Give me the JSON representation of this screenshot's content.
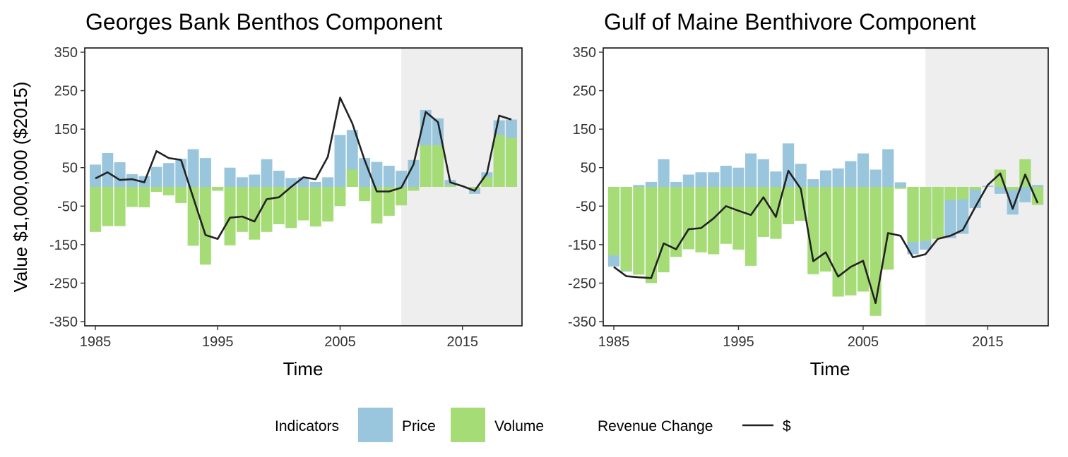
{
  "legend": {
    "fill_title": "Indicators",
    "fill_items": [
      {
        "label": "Price",
        "color": "#9ac6dd"
      },
      {
        "label": "Volume",
        "color": "#a6dc76"
      }
    ],
    "line_title": "Revenue Change",
    "line_label": "$",
    "line_color": "#222222"
  },
  "shade_color": "#eeeeee",
  "chart_data": [
    {
      "type": "bar",
      "title": "Georges Bank Benthos Component",
      "xlabel": "Time",
      "ylabel": "Value $1,000,000 ($2015)",
      "ylim": [
        -350,
        350
      ],
      "xlim": [
        1985,
        2019
      ],
      "yticks": [
        "350",
        "250",
        "150",
        "50",
        "-50",
        "-150",
        "-250",
        "-350"
      ],
      "ytick_values": [
        350,
        250,
        150,
        50,
        -50,
        -150,
        -250,
        -350
      ],
      "xticks": [
        "1985",
        "1995",
        "2005",
        "2015"
      ],
      "xtick_values": [
        1985,
        1995,
        2005,
        2015
      ],
      "shaded_from": 2010,
      "years": [
        1985,
        1986,
        1987,
        1988,
        1989,
        1990,
        1991,
        1992,
        1993,
        1994,
        1995,
        1996,
        1997,
        1998,
        1999,
        2000,
        2001,
        2002,
        2003,
        2004,
        2005,
        2006,
        2007,
        2008,
        2009,
        2010,
        2011,
        2012,
        2013,
        2014,
        2015,
        2016,
        2017,
        2018,
        2019
      ],
      "series": [
        {
          "name": "Price",
          "values": [
            58,
            88,
            64,
            33,
            28,
            52,
            62,
            73,
            98,
            75,
            -10,
            50,
            25,
            32,
            72,
            42,
            23,
            25,
            13,
            25,
            135,
            148,
            75,
            65,
            55,
            42,
            70,
            200,
            178,
            18,
            0,
            -18,
            38,
            173,
            175
          ]
        },
        {
          "name": "Volume",
          "values": [
            -117,
            -102,
            -102,
            -52,
            -53,
            -13,
            -22,
            -42,
            -153,
            -202,
            -10,
            -152,
            -117,
            -137,
            -117,
            -97,
            -107,
            -87,
            -103,
            -90,
            -50,
            45,
            -37,
            -95,
            -75,
            -48,
            -10,
            108,
            108,
            5,
            0,
            -7,
            25,
            135,
            127
          ]
        },
        {
          "name": "$",
          "values": [
            22,
            38,
            18,
            20,
            12,
            93,
            75,
            70,
            -28,
            -125,
            -135,
            -80,
            -77,
            -90,
            -32,
            -27,
            0,
            25,
            20,
            78,
            232,
            165,
            70,
            -12,
            -12,
            -2,
            58,
            195,
            168,
            12,
            2,
            -10,
            35,
            185,
            175
          ]
        }
      ]
    },
    {
      "type": "bar",
      "title": "Gulf of Maine Benthivore Component",
      "xlabel": "Time",
      "ylabel": "",
      "ylim": [
        -350,
        350
      ],
      "xlim": [
        1985,
        2019
      ],
      "yticks": [
        "350",
        "250",
        "150",
        "50",
        "-50",
        "-150",
        "-250",
        "-350"
      ],
      "ytick_values": [
        350,
        250,
        150,
        50,
        -50,
        -150,
        -250,
        -350
      ],
      "xticks": [
        "1985",
        "1995",
        "2005",
        "2015"
      ],
      "xtick_values": [
        1985,
        1995,
        2005,
        2015
      ],
      "shaded_from": 2010,
      "years": [
        1985,
        1986,
        1987,
        1988,
        1989,
        1990,
        1991,
        1992,
        1993,
        1994,
        1995,
        1996,
        1997,
        1998,
        1999,
        2000,
        2001,
        2002,
        2003,
        2004,
        2005,
        2006,
        2007,
        2008,
        2009,
        2010,
        2011,
        2012,
        2013,
        2014,
        2015,
        2016,
        2017,
        2018,
        2019
      ],
      "series": [
        {
          "name": "Price",
          "values": [
            -207,
            -220,
            5,
            13,
            72,
            13,
            32,
            38,
            38,
            55,
            50,
            87,
            72,
            40,
            113,
            60,
            20,
            43,
            48,
            67,
            87,
            45,
            98,
            12,
            -175,
            -163,
            -85,
            -133,
            -122,
            -55,
            3,
            -18,
            -72,
            -40,
            5
          ]
        },
        {
          "name": "Volume",
          "values": [
            -178,
            -218,
            -228,
            -250,
            -222,
            -182,
            -162,
            -170,
            -175,
            -148,
            -163,
            -205,
            -130,
            -135,
            -97,
            -88,
            -227,
            -220,
            -285,
            -282,
            -272,
            -335,
            -215,
            -5,
            -143,
            -140,
            -135,
            -35,
            -32,
            -7,
            0,
            45,
            -8,
            72,
            -47
          ]
        },
        {
          "name": "$",
          "values": [
            -208,
            -232,
            -235,
            -237,
            -147,
            -162,
            -110,
            -107,
            -82,
            -50,
            -62,
            -73,
            -27,
            -78,
            42,
            -5,
            -193,
            -170,
            -233,
            -208,
            -192,
            -302,
            -120,
            -127,
            -183,
            -175,
            -135,
            -127,
            -112,
            -52,
            5,
            35,
            -57,
            32,
            -42
          ]
        }
      ]
    }
  ]
}
